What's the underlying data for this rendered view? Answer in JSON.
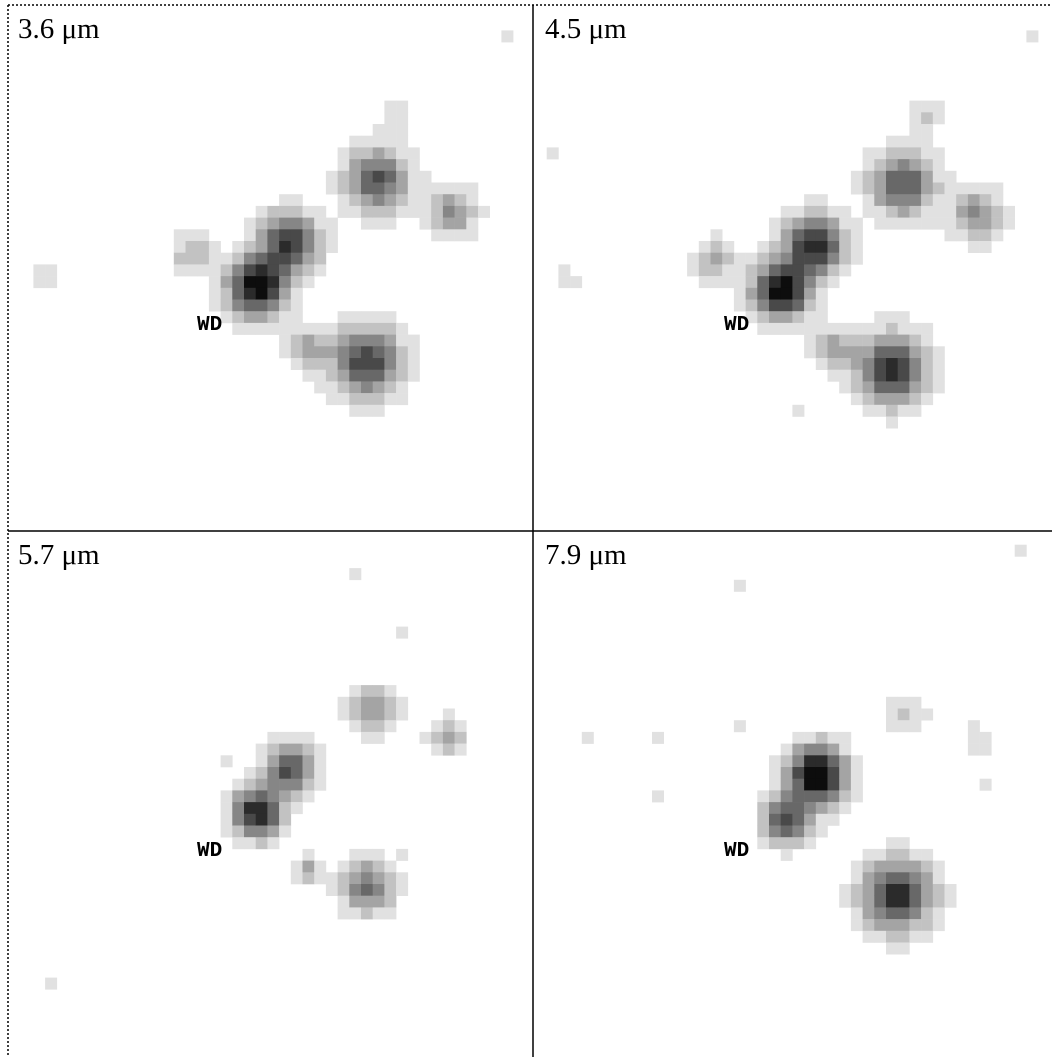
{
  "panels": [
    {
      "label": "3.6 μm",
      "marker": "WD"
    },
    {
      "label": "4.5 μm",
      "marker": "WD"
    },
    {
      "label": "5.7 μm",
      "marker": "WD"
    },
    {
      "label": "7.9 μm",
      "marker": "WD"
    }
  ]
}
